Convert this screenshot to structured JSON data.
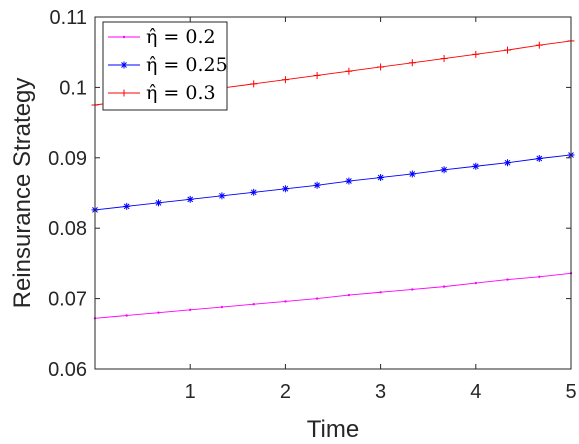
{
  "chart_data": {
    "type": "line",
    "title": "",
    "xlabel": "Time",
    "ylabel": "Reinsurance Strategy",
    "xlim": [
      0,
      5
    ],
    "ylim": [
      0.06,
      0.11
    ],
    "xticks": [
      1,
      2,
      3,
      4,
      5
    ],
    "xtick_labels": [
      "1",
      "2",
      "3",
      "4",
      "5"
    ],
    "yticks": [
      0.06,
      0.07,
      0.08,
      0.09,
      0.1,
      0.11
    ],
    "ytick_labels": [
      "0.06",
      "0.07",
      "0.08",
      "0.09",
      "0.1",
      "0.11"
    ],
    "grid": false,
    "legend_position": "top-left",
    "series": [
      {
        "name": "η̂ = 0.2",
        "color": "#ff00ff",
        "marker": "dot",
        "x": [
          0,
          0.333,
          0.667,
          1,
          1.333,
          1.667,
          2,
          2.333,
          2.667,
          3,
          3.333,
          3.667,
          4,
          4.333,
          4.667,
          5
        ],
        "values": [
          0.0672,
          0.0676,
          0.068,
          0.0684,
          0.0688,
          0.0692,
          0.0696,
          0.07,
          0.0705,
          0.0709,
          0.0713,
          0.0717,
          0.0722,
          0.0727,
          0.0731,
          0.0736
        ]
      },
      {
        "name": "η̂ = 0.25",
        "color": "#0000ff",
        "marker": "asterisk",
        "x": [
          0,
          0.333,
          0.667,
          1,
          1.333,
          1.667,
          2,
          2.333,
          2.667,
          3,
          3.333,
          3.667,
          4,
          4.333,
          4.667,
          5
        ],
        "values": [
          0.0826,
          0.0831,
          0.0836,
          0.0841,
          0.0846,
          0.0851,
          0.0856,
          0.0861,
          0.0867,
          0.0872,
          0.0877,
          0.0883,
          0.0888,
          0.0893,
          0.0899,
          0.0904
        ]
      },
      {
        "name": "η̂ = 0.3",
        "color": "#ff0000",
        "marker": "plus",
        "x": [
          0,
          0.333,
          0.667,
          1,
          1.333,
          1.667,
          2,
          2.333,
          2.667,
          3,
          3.333,
          3.667,
          4,
          4.333,
          4.667,
          5
        ],
        "values": [
          0.0975,
          0.0981,
          0.0987,
          0.0993,
          0.0999,
          0.1005,
          0.1011,
          0.1017,
          0.1023,
          0.1029,
          0.1035,
          0.1041,
          0.1047,
          0.1053,
          0.106,
          0.1066
        ]
      }
    ]
  }
}
